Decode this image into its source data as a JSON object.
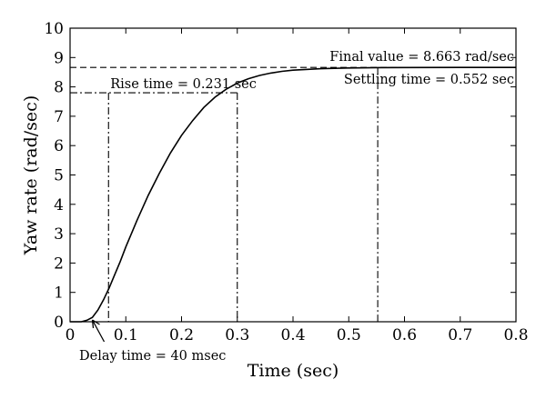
{
  "chart_data": {
    "type": "line",
    "title": "",
    "xlabel": "Time (sec)",
    "ylabel": "Yaw rate (rad/sec)",
    "xlim": [
      0,
      0.8
    ],
    "ylim": [
      0,
      10
    ],
    "xticks": [
      0,
      0.1,
      0.2,
      0.3,
      0.4,
      0.5,
      0.6,
      0.7,
      0.8
    ],
    "yticks": [
      0,
      1,
      2,
      3,
      4,
      5,
      6,
      7,
      8,
      9,
      10
    ],
    "xtick_labels": [
      "0",
      "0.1",
      "0.2",
      "0.3",
      "0.4",
      "0.5",
      "0.6",
      "0.7",
      "0.8"
    ],
    "ytick_labels": [
      "0",
      "1",
      "2",
      "3",
      "4",
      "5",
      "6",
      "7",
      "8",
      "9",
      "10"
    ],
    "grid": false,
    "legend": "none",
    "series": [
      {
        "x": [
          0,
          0.02,
          0.03,
          0.04,
          0.05,
          0.06,
          0.07,
          0.08,
          0.09,
          0.1,
          0.12,
          0.14,
          0.16,
          0.18,
          0.2,
          0.22,
          0.24,
          0.26,
          0.28,
          0.3,
          0.32,
          0.34,
          0.36,
          0.38,
          0.4,
          0.45,
          0.5,
          0.55,
          0.6,
          0.7,
          0.8
        ],
        "y": [
          0,
          0,
          0.05,
          0.15,
          0.4,
          0.75,
          1.15,
          1.6,
          2.05,
          2.55,
          3.45,
          4.3,
          5.05,
          5.75,
          6.35,
          6.85,
          7.3,
          7.65,
          7.92,
          8.13,
          8.28,
          8.39,
          8.47,
          8.53,
          8.57,
          8.62,
          8.645,
          8.655,
          8.66,
          8.663,
          8.663
        ]
      }
    ],
    "annotations": [
      {
        "id": "final",
        "text": "Final value = 8.663 rad/sec",
        "y": 8.663
      },
      {
        "id": "settling",
        "text": "Settling time = 0.552 sec",
        "x": 0.552
      },
      {
        "id": "rise",
        "text": "Rise time = 0.231 sec",
        "y": 7.8,
        "x_start": 0.069,
        "x_end": 0.3
      },
      {
        "id": "delay",
        "text": "Delay time = 40 msec",
        "x": 0.04
      }
    ]
  }
}
